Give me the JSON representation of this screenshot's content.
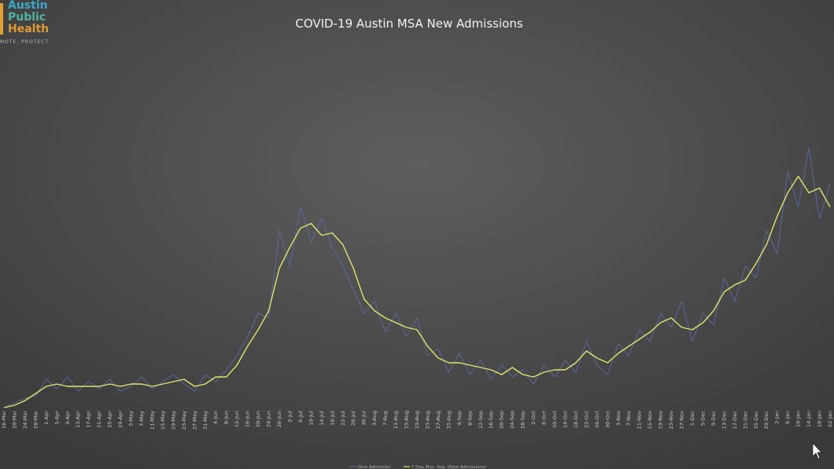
{
  "logo": {
    "lines": [
      "Austin",
      "Public",
      "Health"
    ],
    "tagline": "MOTE. PROTECT."
  },
  "chart_data": {
    "type": "line",
    "title": "COVID-19 Austin MSA New Admissions",
    "categories": [
      "16-Mar",
      "20-Mar",
      "24-Mar",
      "28-Mar",
      "1-Apr",
      "5-Apr",
      "9-Apr",
      "13-Apr",
      "17-Apr",
      "21-Apr",
      "25-Apr",
      "29-Apr",
      "3-May",
      "7-May",
      "11-May",
      "15-May",
      "19-May",
      "23-May",
      "27-May",
      "31-May",
      "4-Jun",
      "8-Jun",
      "12-Jun",
      "16-Jun",
      "20-Jun",
      "24-Jun",
      "28-Jun",
      "2-Jul",
      "6-Jul",
      "10-Jul",
      "14-Jul",
      "18-Jul",
      "22-Jul",
      "26-Jul",
      "30-Jul",
      "3-Aug",
      "7-Aug",
      "11-Aug",
      "15-Aug",
      "19-Aug",
      "23-Aug",
      "27-Aug",
      "31-Aug",
      "4-Sep",
      "8-Sep",
      "12-Sep",
      "16-Sep",
      "20-Sep",
      "24-Sep",
      "28-Sep",
      "2-Oct",
      "6-Oct",
      "10-Oct",
      "14-Oct",
      "18-Oct",
      "22-Oct",
      "26-Oct",
      "30-Oct",
      "3-Nov",
      "7-Nov",
      "11-Nov",
      "15-Nov",
      "19-Nov",
      "23-Nov",
      "27-Nov",
      "1-Dec",
      "5-Dec",
      "9-Dec",
      "13-Dec",
      "17-Dec",
      "21-Dec",
      "25-Dec",
      "29-Dec",
      "2-Jan",
      "6-Jan",
      "10-Jan",
      "14-Jan",
      "18-Jan",
      "22-Jan"
    ],
    "series": [
      {
        "name": "New Admission",
        "color": "#5a6fae",
        "values": [
          0,
          2,
          4,
          5,
          12,
          8,
          13,
          7,
          11,
          8,
          12,
          7,
          9,
          13,
          8,
          11,
          14,
          10,
          7,
          14,
          11,
          16,
          22,
          30,
          40,
          38,
          75,
          60,
          85,
          70,
          80,
          68,
          60,
          50,
          40,
          45,
          32,
          40,
          30,
          38,
          22,
          25,
          15,
          23,
          14,
          20,
          12,
          18,
          13,
          16,
          10,
          18,
          13,
          20,
          15,
          28,
          18,
          14,
          27,
          22,
          33,
          28,
          40,
          34,
          45,
          28,
          40,
          35,
          55,
          45,
          60,
          55,
          75,
          65,
          100,
          85,
          110,
          80,
          95
        ]
      },
      {
        "name": "7 Day Mov. Avg. (New Admissions)",
        "color": "#e4e36a",
        "values": [
          0,
          1,
          3,
          6,
          9,
          10,
          9,
          9,
          9,
          9,
          10,
          9,
          10,
          10,
          9,
          10,
          11,
          12,
          9,
          10,
          13,
          13,
          18,
          26,
          33,
          41,
          59,
          68,
          76,
          78,
          73,
          74,
          69,
          59,
          46,
          41,
          38,
          36,
          34,
          33,
          26,
          21,
          19,
          19,
          18,
          17,
          16,
          14,
          17,
          14,
          13,
          15,
          16,
          16,
          19,
          24,
          21,
          19,
          23,
          26,
          29,
          32,
          36,
          38,
          34,
          33,
          36,
          41,
          49,
          52,
          54,
          61,
          69,
          81,
          91,
          98,
          91,
          93,
          85
        ]
      }
    ],
    "ylim": [
      0,
      146
    ],
    "grid": false
  }
}
